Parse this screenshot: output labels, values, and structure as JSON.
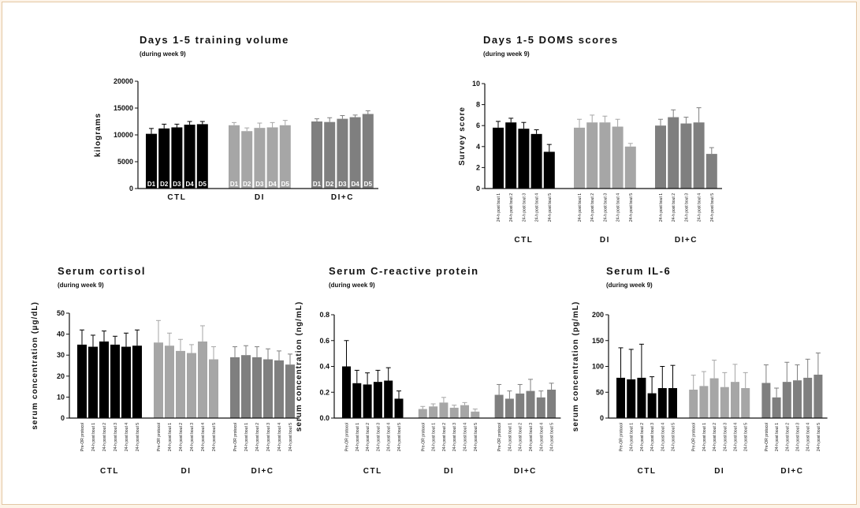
{
  "chart_data": [
    {
      "type": "bar",
      "title": "Days 1-5 training volume",
      "subtitle": "(during week 9)",
      "ylabel": "kilograms",
      "ylim": [
        0,
        20000
      ],
      "yticks": [
        0,
        5000,
        10000,
        15000,
        20000
      ],
      "groups": [
        "CTL",
        "DI",
        "DI+C"
      ],
      "categories": [
        "D1",
        "D2",
        "D3",
        "D4",
        "D5"
      ],
      "bar_labels_inside": true,
      "series": [
        {
          "group": "CTL",
          "color": "#000000",
          "values": [
            10200,
            11200,
            11400,
            11900,
            12000
          ],
          "errors": [
            1000,
            800,
            600,
            600,
            500
          ]
        },
        {
          "group": "DI",
          "color": "#a6a6a6",
          "values": [
            11800,
            10700,
            11300,
            11400,
            11800
          ],
          "errors": [
            500,
            600,
            900,
            900,
            900
          ]
        },
        {
          "group": "DI+C",
          "color": "#7f7f7f",
          "values": [
            12500,
            12400,
            13000,
            13300,
            13900
          ],
          "errors": [
            500,
            800,
            600,
            400,
            600
          ]
        }
      ]
    },
    {
      "type": "bar",
      "title": "Days 1-5 DOMS scores",
      "subtitle": "(during week 9)",
      "ylabel": "Survey score",
      "ylim": [
        0,
        10
      ],
      "yticks": [
        0,
        2,
        4,
        6,
        8,
        10
      ],
      "groups": [
        "CTL",
        "DI",
        "DI+C"
      ],
      "categories": [
        "24-h post bout 1",
        "24-h post bout 2",
        "24-h post bout 3",
        "24-h post bout 4",
        "24-h post bout 5"
      ],
      "series": [
        {
          "group": "CTL",
          "color": "#000000",
          "values": [
            5.8,
            6.3,
            5.7,
            5.2,
            3.5
          ],
          "errors": [
            0.6,
            0.4,
            0.6,
            0.4,
            0.7
          ]
        },
        {
          "group": "DI",
          "color": "#a6a6a6",
          "values": [
            5.8,
            6.3,
            6.3,
            5.9,
            4.0
          ],
          "errors": [
            0.8,
            0.7,
            0.6,
            0.7,
            0.3
          ]
        },
        {
          "group": "DI+C",
          "color": "#7f7f7f",
          "values": [
            6.0,
            6.8,
            6.2,
            6.3,
            3.3
          ],
          "errors": [
            0.6,
            0.7,
            0.6,
            1.4,
            0.6
          ]
        }
      ]
    },
    {
      "type": "bar",
      "title": "Serum cortisol",
      "subtitle": "(during week 9)",
      "ylabel": "serum concentration (μg/dL)",
      "ylim": [
        0,
        50
      ],
      "yticks": [
        0,
        10,
        20,
        30,
        40,
        50
      ],
      "groups": [
        "CTL",
        "DI",
        "DI+C"
      ],
      "categories": [
        "Pre-OR protocol",
        "24-h post bout 1",
        "24-h post bout 2",
        "24-h post bout 3",
        "24-h post bout 4",
        "24-h post bout 5"
      ],
      "series": [
        {
          "group": "CTL",
          "color": "#000000",
          "values": [
            35,
            34,
            36.5,
            35,
            34,
            34.5
          ],
          "errors": [
            7,
            5.5,
            5,
            4,
            6.5,
            7.5
          ]
        },
        {
          "group": "DI",
          "color": "#a6a6a6",
          "values": [
            36,
            34.5,
            32,
            31,
            36.5,
            28
          ],
          "errors": [
            10.5,
            6,
            5.5,
            4,
            7.5,
            6
          ]
        },
        {
          "group": "DI+C",
          "color": "#7f7f7f",
          "values": [
            29,
            30,
            29,
            28,
            27.5,
            25.5
          ],
          "errors": [
            5,
            4.5,
            5,
            5,
            4.5,
            5
          ]
        }
      ]
    },
    {
      "type": "bar",
      "title": "Serum C-reactive protein",
      "subtitle": "(during week 9)",
      "ylabel": "serum concentration (ng/mL)",
      "ylim": [
        0,
        0.8
      ],
      "yticks": [
        0.0,
        0.2,
        0.4,
        0.6,
        0.8
      ],
      "tick_format": "0.0",
      "groups": [
        "CTL",
        "DI",
        "DI+C"
      ],
      "categories": [
        "Pre-OR protocol",
        "24-h post bout 1",
        "24-h post bout 2",
        "24-h post bout 3",
        "24-h post bout 4",
        "24-h post bout 5"
      ],
      "series": [
        {
          "group": "CTL",
          "color": "#000000",
          "values": [
            0.4,
            0.27,
            0.26,
            0.28,
            0.29,
            0.15
          ],
          "errors": [
            0.2,
            0.1,
            0.09,
            0.09,
            0.1,
            0.06
          ]
        },
        {
          "group": "DI",
          "color": "#a6a6a6",
          "values": [
            0.07,
            0.09,
            0.12,
            0.08,
            0.1,
            0.05
          ],
          "errors": [
            0.02,
            0.02,
            0.04,
            0.02,
            0.02,
            0.02
          ]
        },
        {
          "group": "DI+C",
          "color": "#7f7f7f",
          "values": [
            0.18,
            0.15,
            0.19,
            0.21,
            0.16,
            0.22
          ],
          "errors": [
            0.08,
            0.06,
            0.07,
            0.09,
            0.05,
            0.05
          ]
        }
      ]
    },
    {
      "type": "bar",
      "title": "Serum IL-6",
      "subtitle": "(during week 9)",
      "ylabel": "serum concentration (pg/mL)",
      "ylim": [
        0,
        200
      ],
      "yticks": [
        0,
        50,
        100,
        150,
        200
      ],
      "groups": [
        "CTL",
        "DI",
        "DI+C"
      ],
      "categories": [
        "Pre-OR protocol",
        "24-h post bout 1",
        "24-h post bout 2",
        "24-h post bout 3",
        "24-h post bout 4",
        "24-h post bout 5"
      ],
      "series": [
        {
          "group": "CTL",
          "color": "#000000",
          "values": [
            78,
            75,
            78,
            48,
            58,
            58
          ],
          "errors": [
            58,
            58,
            65,
            32,
            42,
            44
          ]
        },
        {
          "group": "DI",
          "color": "#a6a6a6",
          "values": [
            55,
            62,
            77,
            60,
            70,
            58
          ],
          "errors": [
            28,
            28,
            35,
            28,
            34,
            30
          ]
        },
        {
          "group": "DI+C",
          "color": "#7f7f7f",
          "values": [
            68,
            40,
            70,
            73,
            78,
            84
          ],
          "errors": [
            35,
            18,
            38,
            30,
            36,
            42
          ]
        }
      ]
    }
  ]
}
